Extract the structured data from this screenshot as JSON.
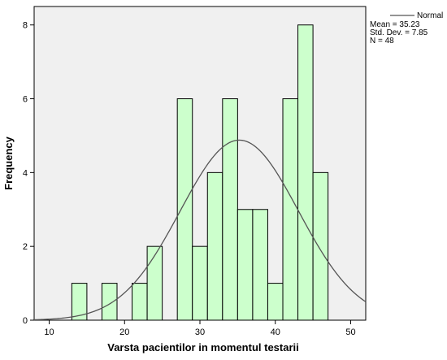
{
  "chart_data": {
    "type": "bar",
    "subtype": "histogram",
    "title": "",
    "xlabel": "Varsta pacientilor in momentul testarii",
    "ylabel": "Frequency",
    "xlim": [
      8,
      52
    ],
    "ylim": [
      0,
      8.5
    ],
    "x_ticks": [
      10,
      20,
      30,
      40,
      50
    ],
    "y_ticks": [
      0,
      2,
      4,
      6,
      8
    ],
    "bin_width": 2,
    "bins": [
      {
        "start": 13,
        "end": 15,
        "value": 1
      },
      {
        "start": 17,
        "end": 19,
        "value": 1
      },
      {
        "start": 21,
        "end": 23,
        "value": 1
      },
      {
        "start": 23,
        "end": 25,
        "value": 2
      },
      {
        "start": 27,
        "end": 29,
        "value": 6
      },
      {
        "start": 29,
        "end": 31,
        "value": 2
      },
      {
        "start": 31,
        "end": 33,
        "value": 4
      },
      {
        "start": 33,
        "end": 35,
        "value": 6
      },
      {
        "start": 35,
        "end": 37,
        "value": 3
      },
      {
        "start": 37,
        "end": 39,
        "value": 3
      },
      {
        "start": 39,
        "end": 41,
        "value": 1
      },
      {
        "start": 41,
        "end": 43,
        "value": 6
      },
      {
        "start": 43,
        "end": 45,
        "value": 8
      },
      {
        "start": 45,
        "end": 47,
        "value": 4
      }
    ],
    "normal_curve": {
      "name": "Normal",
      "mean": 35.23,
      "std_dev": 7.85,
      "n": 48
    },
    "legend": {
      "position": "top-right",
      "entry_label": "Normal",
      "stats": [
        "Mean = 35.23",
        "Std. Dev. = 7.85",
        "N = 48"
      ]
    },
    "grid": false,
    "colors": {
      "plot_background": "#f0f0f0",
      "bar_fill": "#ccffcc",
      "bar_stroke": "#000000",
      "curve": "#555555",
      "axis": "#000000"
    }
  }
}
